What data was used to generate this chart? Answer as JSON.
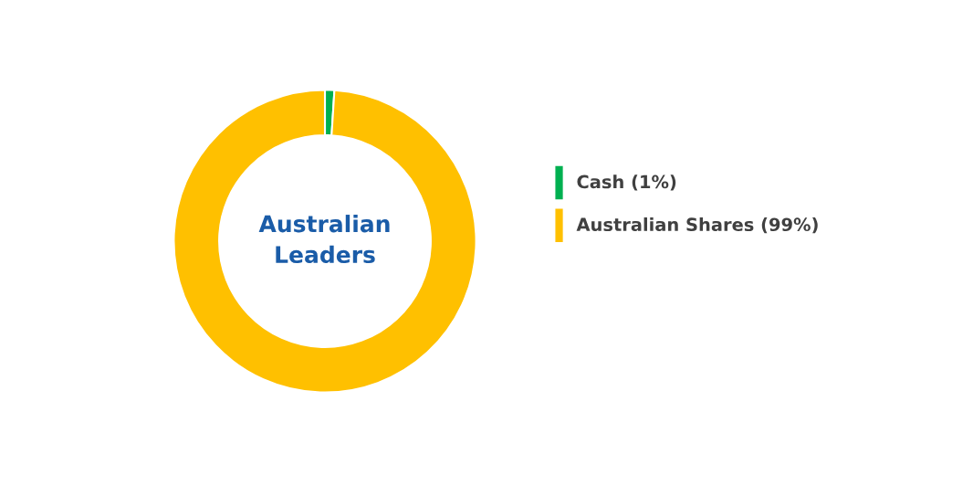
{
  "chart_data": {
    "type": "donut",
    "title": "Australian Leaders",
    "categories": [
      "Cash (1%)",
      "Australian Shares (99%)"
    ],
    "values": [
      1,
      99
    ],
    "colors": [
      "#00b050",
      "#ffc000"
    ],
    "legend": "right"
  }
}
